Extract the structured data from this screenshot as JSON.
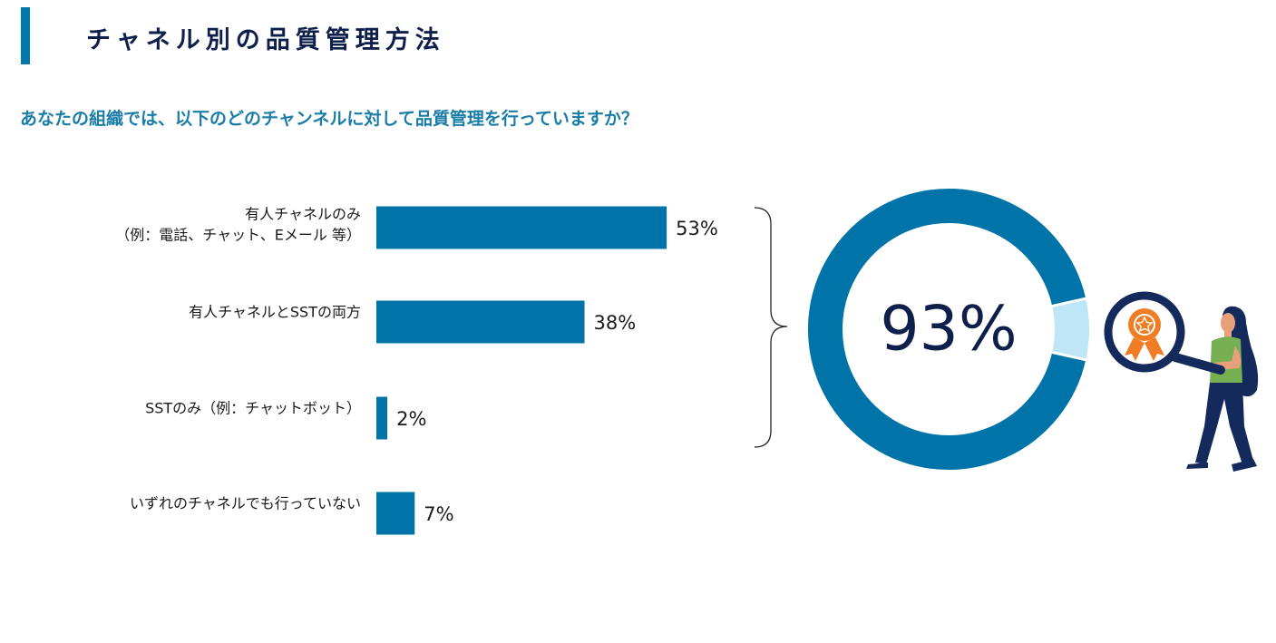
{
  "header": {
    "title": "チャネル別の品質管理方法",
    "question": "あなたの組織では、以下のどのチャンネルに対して品質管理を行っていますか？"
  },
  "colors": {
    "accent": "#0077aa",
    "bar": "#0073a8",
    "donut_highlight": "#bfe6f7",
    "title_text": "#0d1f4a",
    "question_text": "#1a7da8",
    "big_number": "#0d1f4a",
    "badge_orange": "#f07d23"
  },
  "chart_data": [
    {
      "type": "bar",
      "orientation": "horizontal",
      "categories": [
        [
          "有人チャネルのみ",
          "（例：電話、チャット、Eメール 等）"
        ],
        [
          "有人チャネルとSSTの両方"
        ],
        [
          "SSTのみ（例：チャットボット）"
        ],
        [
          "いずれのチャネルでも行っていない"
        ]
      ],
      "values": [
        53,
        38,
        2,
        7
      ],
      "value_labels": [
        "53%",
        "38%",
        "2%",
        "7%"
      ],
      "unit": "%"
    },
    {
      "type": "pie",
      "style": "donut",
      "values": [
        93,
        7
      ],
      "center_label": "93%"
    }
  ],
  "illustration": {
    "figure": "person-with-magnifier",
    "badge_icon": "award-ribbon-icon"
  }
}
